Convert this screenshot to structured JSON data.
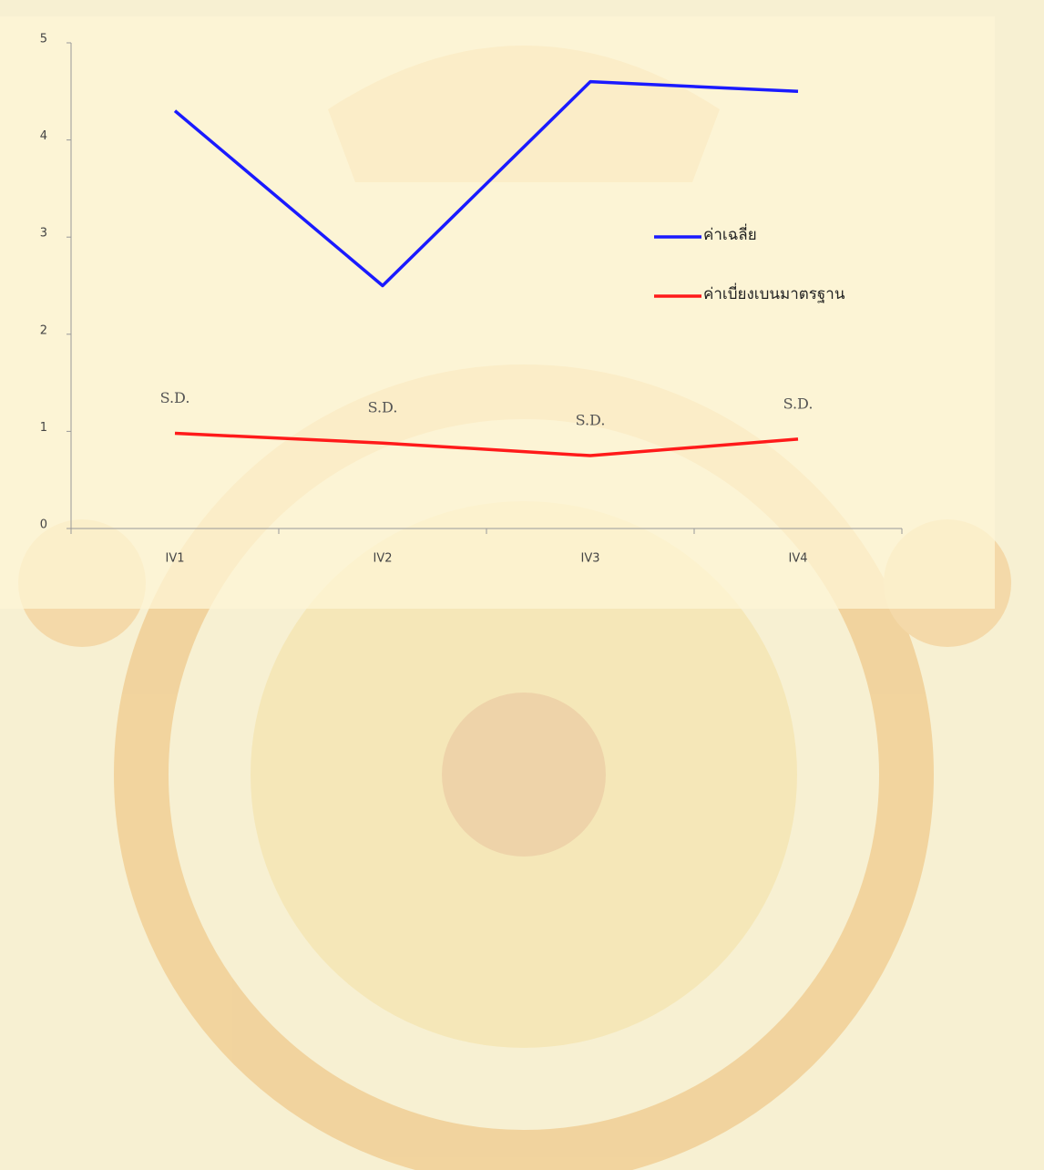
{
  "chart_data": {
    "type": "line",
    "categories": [
      "IV1",
      "IV2",
      "IV3",
      "IV4"
    ],
    "series": [
      {
        "name": "ค่าเฉลี่ย",
        "color": "#1a1aff",
        "values": [
          4.3,
          2.5,
          4.6,
          4.5
        ]
      },
      {
        "name": "ค่าเบี่ยงเบนมาตรฐาน",
        "color": "#ff1a1a",
        "values": [
          0.98,
          0.88,
          0.75,
          0.92
        ]
      }
    ],
    "annotations": [
      "S.D.",
      "S.D.",
      "S.D.",
      "S.D."
    ],
    "ylim": [
      0,
      5
    ],
    "yticks": [
      0,
      1,
      2,
      3,
      4,
      5
    ],
    "legend": "right",
    "grid": false
  }
}
